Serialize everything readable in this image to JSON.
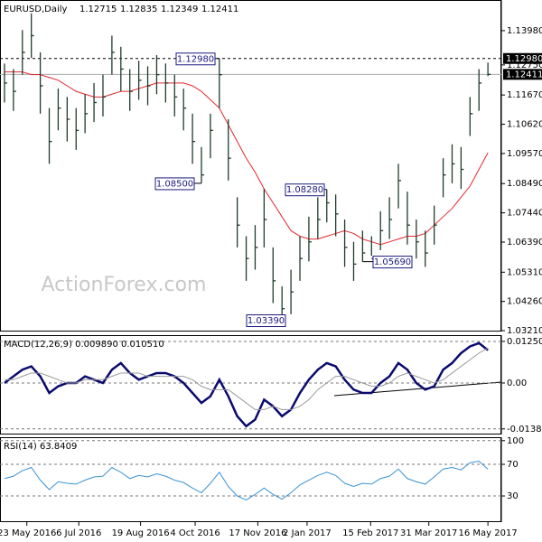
{
  "chart_data": [
    {
      "type": "ohlc",
      "title": "EURUSD,Daily",
      "header_values": [
        "1.12715",
        "1.12835",
        "1.12349",
        "1.12411"
      ],
      "watermark": "ActionForex.com",
      "xlim": [
        -0.5,
        55.5
      ],
      "ylim": [
        1.0318,
        1.1508
      ],
      "yticks": [
        {
          "value": 1.1398,
          "label": "1.13980"
        },
        {
          "value": 1.1275,
          "label": "1.12750"
        },
        {
          "value": 1.1167,
          "label": "1.11670"
        },
        {
          "value": 1.1062,
          "label": "1.10620"
        },
        {
          "value": 1.0957,
          "label": "1.09570"
        },
        {
          "value": 1.0849,
          "label": "1.08490"
        },
        {
          "value": 1.0744,
          "label": "1.07440"
        },
        {
          "value": 1.0639,
          "label": "1.06390"
        },
        {
          "value": 1.0531,
          "label": "1.05310"
        },
        {
          "value": 1.0426,
          "label": "1.04260"
        },
        {
          "value": 1.0321,
          "label": "1.03210"
        }
      ],
      "level_line": {
        "value": 1.1298,
        "label": "1.12980"
      },
      "current_price": {
        "value": 1.12411,
        "label": "1.12411"
      },
      "bar_color": "#1f3d2b",
      "ma_color": "#e3262b",
      "high": [
        1.128,
        1.126,
        1.14,
        1.146,
        1.132,
        1.112,
        1.119,
        1.116,
        1.112,
        1.117,
        1.121,
        1.124,
        1.138,
        1.134,
        1.126,
        1.129,
        1.127,
        1.131,
        1.128,
        1.124,
        1.119,
        1.11,
        1.098,
        1.11,
        1.1298,
        1.108,
        1.08,
        1.066,
        1.07,
        1.083,
        1.062,
        1.048,
        1.054,
        1.066,
        1.073,
        1.08,
        1.0828,
        1.081,
        1.072,
        1.064,
        1.068,
        1.066,
        1.075,
        1.08,
        1.092,
        1.082,
        1.072,
        1.068,
        1.077,
        1.094,
        1.099,
        1.098,
        1.116,
        1.126,
        1.12835
      ],
      "low": [
        1.114,
        1.111,
        1.124,
        1.13,
        1.11,
        1.092,
        1.104,
        1.1,
        1.097,
        1.103,
        1.107,
        1.109,
        1.124,
        1.118,
        1.111,
        1.115,
        1.113,
        1.117,
        1.114,
        1.109,
        1.104,
        1.092,
        1.085,
        1.094,
        1.112,
        1.086,
        1.062,
        1.05,
        1.054,
        1.062,
        1.042,
        1.0339,
        1.038,
        1.05,
        1.057,
        1.065,
        1.071,
        1.066,
        1.055,
        1.05,
        1.0569,
        1.059,
        1.061,
        1.065,
        1.076,
        1.063,
        1.058,
        1.055,
        1.063,
        1.08,
        1.085,
        1.083,
        1.102,
        1.111,
        1.12349
      ],
      "close": [
        1.121,
        1.118,
        1.132,
        1.138,
        1.12,
        1.1,
        1.112,
        1.108,
        1.104,
        1.11,
        1.114,
        1.116,
        1.132,
        1.126,
        1.118,
        1.122,
        1.12,
        1.124,
        1.121,
        1.116,
        1.112,
        1.1,
        1.088,
        1.104,
        1.124,
        1.094,
        1.07,
        1.058,
        1.062,
        1.072,
        1.05,
        1.04,
        1.046,
        1.058,
        1.064,
        1.072,
        1.078,
        1.074,
        1.062,
        1.056,
        1.06,
        1.058,
        1.068,
        1.072,
        1.086,
        1.07,
        1.064,
        1.06,
        1.07,
        1.088,
        1.092,
        1.09,
        1.11,
        1.121,
        1.12411
      ],
      "ma": [
        1.125,
        1.125,
        1.125,
        1.124,
        1.124,
        1.123,
        1.122,
        1.12,
        1.118,
        1.117,
        1.116,
        1.116,
        1.117,
        1.118,
        1.118,
        1.119,
        1.12,
        1.121,
        1.121,
        1.121,
        1.121,
        1.12,
        1.118,
        1.115,
        1.112,
        1.106,
        1.1,
        1.094,
        1.089,
        1.083,
        1.078,
        1.073,
        1.068,
        1.066,
        1.065,
        1.065,
        1.066,
        1.067,
        1.068,
        1.067,
        1.065,
        1.064,
        1.063,
        1.064,
        1.065,
        1.066,
        1.066,
        1.067,
        1.07,
        1.073,
        1.076,
        1.08,
        1.084,
        1.09,
        1.096
      ],
      "annotations": [
        {
          "value": 1.1298,
          "label": "1.12980"
        },
        {
          "value": 1.085,
          "label": "1.08500"
        },
        {
          "value": 1.0828,
          "label": "1.08280"
        },
        {
          "value": 1.0569,
          "label": "1.05690"
        },
        {
          "value": 1.0339,
          "label": "1.03390"
        }
      ]
    },
    {
      "type": "line",
      "title": "MACD(12,26,9) 0.009890 0.010510",
      "xlim": [
        -0.5,
        55.5
      ],
      "ylim": [
        -0.0155,
        0.0144
      ],
      "grid": true,
      "yticks": [
        0.012509,
        {
          "value": 0,
          "label": "0.00"
        },
        -0.013813
      ],
      "series": [
        {
          "color": "#0b0b6e",
          "width": 2.5,
          "values": [
            0.0,
            0.002,
            0.004,
            0.005,
            0.002,
            -0.003,
            -0.001,
            0.0,
            0.0,
            0.002,
            0.001,
            0.0,
            0.004,
            0.006,
            0.003,
            0.001,
            0.002,
            0.003,
            0.003,
            0.002,
            0.0,
            -0.003,
            -0.006,
            -0.004,
            0.001,
            -0.004,
            -0.01,
            -0.013,
            -0.011,
            -0.005,
            -0.007,
            -0.01,
            -0.008,
            -0.003,
            0.001,
            0.004,
            0.006,
            0.005,
            0.001,
            -0.002,
            -0.003,
            -0.003,
            0.0,
            0.002,
            0.006,
            0.004,
            0.0,
            -0.002,
            -0.001,
            0.004,
            0.006,
            0.009,
            0.011,
            0.012,
            0.00989
          ]
        },
        {
          "color": "#9a9a9a",
          "width": 1,
          "values": [
            0.001,
            0.001,
            0.002,
            0.003,
            0.003,
            0.002,
            0.001,
            0.0,
            0.0,
            0.001,
            0.001,
            0.001,
            0.002,
            0.003,
            0.003,
            0.003,
            0.002,
            0.002,
            0.002,
            0.002,
            0.002,
            0.001,
            -0.001,
            -0.002,
            -0.002,
            -0.002,
            -0.004,
            -0.006,
            -0.008,
            -0.008,
            -0.007,
            -0.008,
            -0.008,
            -0.007,
            -0.005,
            -0.002,
            0.0,
            0.002,
            0.002,
            0.001,
            0.0,
            -0.001,
            -0.001,
            0.0,
            0.002,
            0.003,
            0.002,
            0.001,
            0.0,
            0.001,
            0.003,
            0.005,
            0.007,
            0.009,
            0.01051
          ]
        }
      ]
    },
    {
      "type": "line",
      "title": "RSI(14) 63.8409",
      "xlim": [
        -0.5,
        55.5
      ],
      "ylim": [
        -3.1,
        104.3
      ],
      "grid": true,
      "yticks": [
        100,
        70,
        30
      ],
      "xticks": [
        {
          "value": 2.5,
          "label": "23 May 2016"
        },
        {
          "value": 8.3,
          "label": "6 Jul 2016"
        },
        {
          "value": 15.2,
          "label": "19 Aug 2016"
        },
        {
          "value": 21.3,
          "label": "4 Oct 2016"
        },
        {
          "value": 28.3,
          "label": "17 Nov 2016"
        },
        {
          "value": 33.8,
          "label": "2 Jan 2017"
        },
        {
          "value": 40.9,
          "label": "15 Feb 2017"
        },
        {
          "value": 47.4,
          "label": "31 Mar 2017"
        },
        {
          "value": 54,
          "label": "16 May 2017"
        }
      ],
      "series": [
        {
          "color": "#3a93d4",
          "width": 1,
          "values": [
            52,
            55,
            62,
            66,
            50,
            38,
            48,
            46,
            45,
            50,
            54,
            55,
            66,
            60,
            52,
            56,
            54,
            58,
            55,
            50,
            47,
            40,
            34,
            46,
            60,
            42,
            30,
            25,
            32,
            40,
            32,
            26,
            34,
            44,
            50,
            56,
            60,
            56,
            46,
            42,
            46,
            45,
            52,
            55,
            64,
            52,
            48,
            45,
            54,
            64,
            66,
            63,
            72,
            74,
            63.8409
          ]
        }
      ]
    }
  ]
}
